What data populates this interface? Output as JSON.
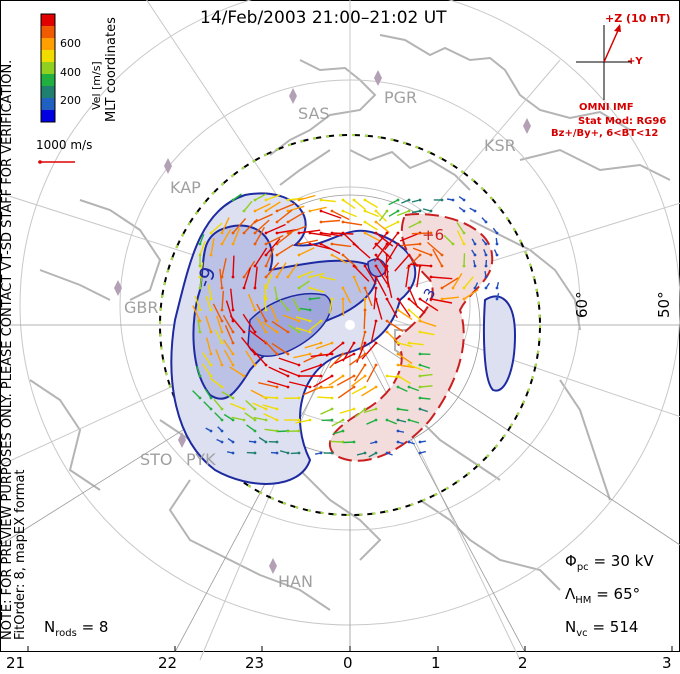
{
  "title": "14/Feb/2003 21:00–21:02 UT",
  "colorbar": {
    "label": "Vel [m/s]",
    "ticks": [
      "600",
      "400",
      "200"
    ],
    "colors": [
      "#e00000",
      "#f05a00",
      "#ffa000",
      "#f0dc00",
      "#90d020",
      "#20b040",
      "#208070",
      "#2060c0",
      "#0000e0"
    ]
  },
  "coordinates_label": "MLT coordinates",
  "scale_vector_label": "1000 m/s",
  "side_note": {
    "line1": "NOTE: FOR PREVIEW PURPOSES ONLY. PLEASE CONTACT VT-SD STAFF FOR VERIFICATION.",
    "line2": "FitOrder: 8, mapEX format"
  },
  "imf": {
    "z_label": "+Z (10 nT)",
    "y_label": "+Y",
    "source": "OMNI IMF",
    "stat_mod": "Stat Mod: RG96",
    "condition": "Bz+/By+, 6<BT<12"
  },
  "stations": [
    "SAS",
    "PGR",
    "KSR",
    "KAP",
    "GBR",
    "STO",
    "PYK",
    "HAN"
  ],
  "latitude_labels": [
    "60°",
    "50°"
  ],
  "contour_labels": [
    "-9",
    "-3",
    "+6"
  ],
  "stats": {
    "phi_pc": "Φpc = 30 kV",
    "phi_sym": "Φ",
    "phi_sub": "pc",
    "phi_val": "= 30 kV",
    "lam_sym": "Λ",
    "lam_sub": "HM",
    "lam_val": "= 65°",
    "nvc_sym": "N",
    "nvc_sub": "vc",
    "nvc_val": "= 514",
    "nrods_sym": "N",
    "nrods_sub": "rods",
    "nrods_val": "= 8"
  },
  "mlt_ticks": [
    "21",
    "22",
    "23",
    "0",
    "1",
    "2",
    "3"
  ]
}
